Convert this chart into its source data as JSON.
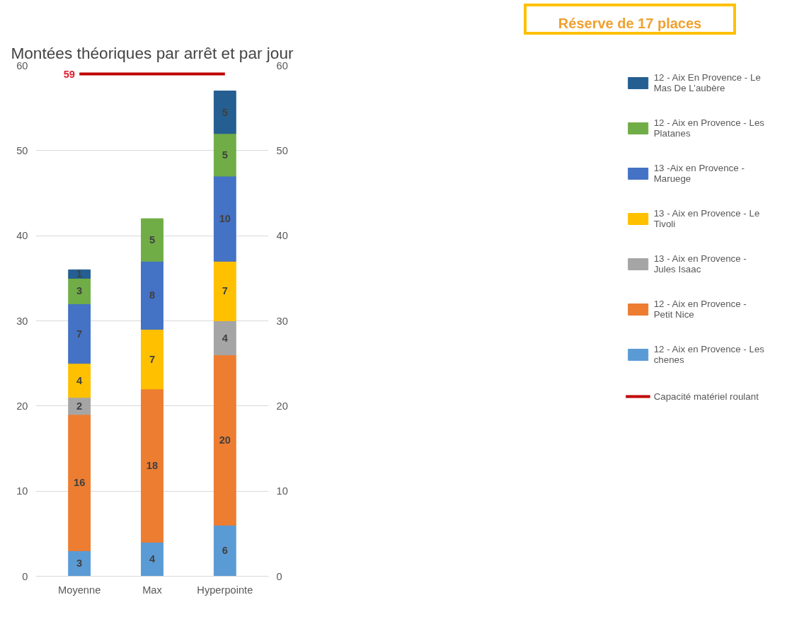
{
  "chart_data": {
    "type": "bar",
    "stacked": true,
    "title": "Montées théoriques par arrêt et par jour",
    "categories": [
      "Moyenne",
      "Max",
      "Hyperpointe"
    ],
    "series": [
      {
        "name": "12 - Aix en Provence - Les chenes",
        "color": "#5b9bd5",
        "values": [
          3,
          4,
          6
        ]
      },
      {
        "name": "12 - Aix en Provence - Petit Nice",
        "color": "#ed7d31",
        "values": [
          16,
          18,
          20
        ]
      },
      {
        "name": "13 - Aix en Provence - Jules Isaac",
        "color": "#a5a5a5",
        "values": [
          2,
          null,
          4
        ]
      },
      {
        "name": "13 - Aix en Provence - Le Tivoli",
        "color": "#ffc000",
        "values": [
          4,
          7,
          7
        ]
      },
      {
        "name": "13 -Aix en Provence - Maruege",
        "color": "#4472c4",
        "values": [
          7,
          8,
          10
        ]
      },
      {
        "name": "12 - Aix en Provence - Les Platanes",
        "color": "#70ad47",
        "values": [
          3,
          5,
          5
        ]
      },
      {
        "name": "12 - Aix En Provence - Le Mas De L’aubère",
        "color": "#255e91",
        "values": [
          1,
          null,
          5
        ]
      },
      {
        "name": "Capacité matériel roulant",
        "type": "line",
        "color": "#c00000",
        "values": [
          59,
          59,
          59
        ],
        "value_labels": [
          "59",
          null,
          null
        ]
      }
    ],
    "ylim": [
      0,
      60
    ],
    "yticks": [
      0,
      10,
      20,
      30,
      40,
      50,
      60
    ],
    "y2lim": [
      0,
      60
    ],
    "y2ticks": [
      0,
      10,
      20,
      30,
      40,
      50,
      60
    ],
    "annotations": [
      "Réserve de 17 places"
    ],
    "data_labels": true,
    "grid": "y",
    "legend": "right"
  }
}
